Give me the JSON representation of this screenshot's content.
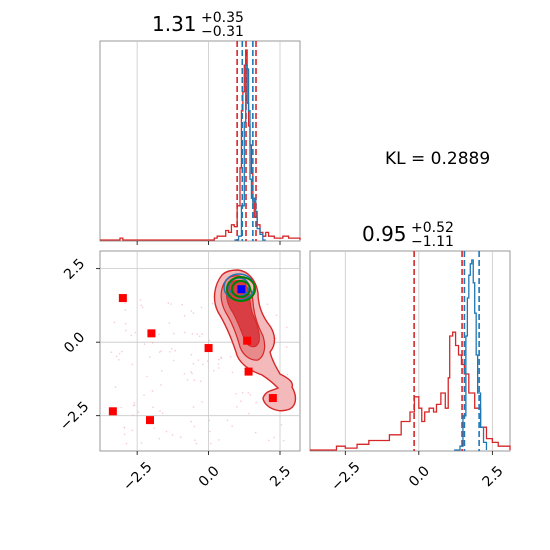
{
  "chart_data": [
    {
      "type": "line",
      "panel": "marginal-param1",
      "title": {
        "value": "1.31",
        "upper": "+0.35",
        "lower": "−0.31"
      },
      "xlim": [
        -3.8,
        3.2
      ],
      "grid": true,
      "series": [
        {
          "color": "#d62728",
          "x": [
            -3.8,
            -3.5,
            -3.1,
            -3.0,
            -2.6,
            0.0,
            0.2,
            0.3,
            0.45,
            0.6,
            0.7,
            0.8,
            0.9,
            1.0,
            1.1,
            1.15,
            1.2,
            1.25,
            1.3,
            1.35,
            1.4,
            1.45,
            1.5,
            1.55,
            1.6,
            1.7,
            1.8,
            1.9,
            2.0,
            2.1,
            2.3,
            2.6,
            2.8,
            3.2
          ],
          "y": [
            0.0,
            0.0,
            0.01,
            0.0,
            0.0,
            0.0,
            0.01,
            0.02,
            0.02,
            0.05,
            0.04,
            0.08,
            0.07,
            0.18,
            0.38,
            0.68,
            0.78,
            0.92,
            1.0,
            0.72,
            0.6,
            0.5,
            0.35,
            0.2,
            0.12,
            0.08,
            0.04,
            0.02,
            0.04,
            0.02,
            0.01,
            0.02,
            0.01,
            0.0
          ],
          "quantiles": [
            1.0,
            1.31,
            1.66
          ]
        },
        {
          "color": "#1f77b4",
          "x": [
            0.9,
            1.05,
            1.15,
            1.25,
            1.3,
            1.35,
            1.4,
            1.45,
            1.5,
            1.55,
            1.6,
            1.65,
            1.7,
            1.8,
            1.9,
            2.0
          ],
          "y": [
            0.0,
            0.02,
            0.18,
            0.62,
            0.92,
            0.9,
            0.68,
            0.32,
            0.22,
            0.2,
            0.22,
            0.15,
            0.06,
            0.03,
            0.0,
            0.0
          ],
          "quantiles": [
            1.18,
            1.55
          ]
        }
      ]
    },
    {
      "type": "scatter",
      "panel": "joint-2d",
      "xlim": [
        -3.8,
        3.2
      ],
      "ylim": [
        -3.7,
        3.1
      ],
      "xticks": [
        "−2.5",
        "0.0",
        "2.5"
      ],
      "yticks": [
        "−2.5",
        "0.0",
        "2.5"
      ],
      "grid": true,
      "markers": {
        "color": "#ff0000",
        "x": [
          -3.0,
          -2.0,
          0.0,
          1.35,
          1.4,
          -3.35,
          -2.05,
          2.25
        ],
        "y": [
          1.5,
          0.3,
          -0.2,
          0.05,
          -1.0,
          -2.35,
          -2.65,
          -1.9
        ]
      },
      "blue_marker": {
        "x": 1.15,
        "y": 1.8,
        "color": "#0000ff"
      },
      "contours": {
        "red_outer_fill": "#f4b9bb",
        "red_mid_fill": "#e88a8c",
        "red_inner_fill": "#d83e43",
        "red_line": "#d62728",
        "blue_line": "#1f77b4",
        "green_line": "#008000"
      }
    },
    {
      "type": "line",
      "panel": "marginal-param2",
      "title": {
        "value": "0.95",
        "upper": "+0.52",
        "lower": "−1.11"
      },
      "xlim": [
        -3.7,
        3.1
      ],
      "xticks": [
        "−2.5",
        "0.0",
        "2.5"
      ],
      "grid": true,
      "series": [
        {
          "color": "#d62728",
          "x": [
            -3.7,
            -3.2,
            -2.8,
            -2.5,
            -2.1,
            -1.7,
            -1.4,
            -1.0,
            -0.6,
            -0.3,
            -0.15,
            0.0,
            0.1,
            0.2,
            0.35,
            0.5,
            0.6,
            0.75,
            0.9,
            1.0,
            1.05,
            1.15,
            1.25,
            1.35,
            1.45,
            1.55,
            1.7,
            1.9,
            2.1,
            2.3,
            2.5,
            2.7,
            3.1
          ],
          "y": [
            0.0,
            0.0,
            0.02,
            0.01,
            0.03,
            0.05,
            0.05,
            0.08,
            0.15,
            0.2,
            0.28,
            0.22,
            0.15,
            0.2,
            0.22,
            0.2,
            0.24,
            0.3,
            0.22,
            0.38,
            0.6,
            0.62,
            0.55,
            0.5,
            0.45,
            0.4,
            0.3,
            0.22,
            0.12,
            0.06,
            0.04,
            0.02,
            0.0
          ],
          "quantiles": [
            -0.16,
            1.47
          ]
        },
        {
          "color": "#1f77b4",
          "x": [
            1.2,
            1.4,
            1.5,
            1.6,
            1.65,
            1.7,
            1.75,
            1.8,
            1.85,
            1.9,
            1.95,
            2.0,
            2.1,
            2.2,
            2.3
          ],
          "y": [
            0.0,
            0.02,
            0.18,
            0.6,
            0.8,
            0.92,
            0.98,
            1.0,
            0.88,
            0.72,
            0.5,
            0.3,
            0.12,
            0.04,
            0.0
          ],
          "quantiles": [
            1.55,
            2.05
          ]
        }
      ]
    }
  ],
  "annotations": {
    "kl_label": "KL = 0.2889"
  }
}
